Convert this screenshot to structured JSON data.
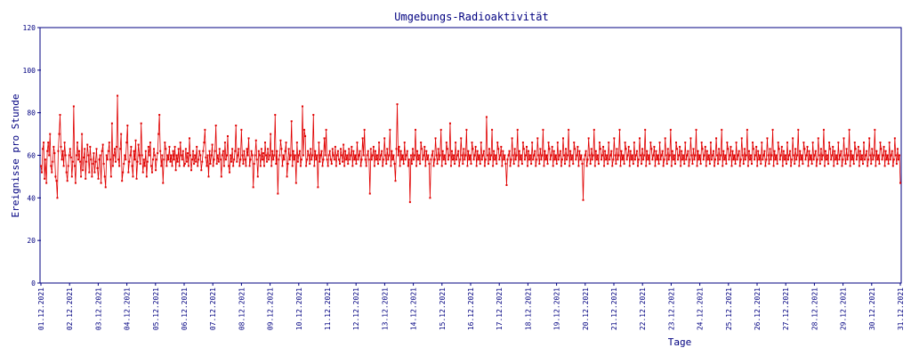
{
  "colors": {
    "frame": "#000080",
    "series": "#e00000",
    "background": "#ffffff"
  },
  "chart_data": {
    "type": "line",
    "title": "Umgebungs-Radioaktivität",
    "xlabel": "Tage",
    "ylabel": "Ereignisse pro Stunde",
    "ylim": [
      0,
      120
    ],
    "yticks": [
      0,
      20,
      40,
      60,
      80,
      100,
      120
    ],
    "xlim": [
      "01.12.2021",
      "31.12.2021"
    ],
    "xticks": [
      "01.12.2021",
      "02.12.2021",
      "03.12.2021",
      "04.12.2021",
      "05.12.2021",
      "06.12.2021",
      "07.12.2021",
      "08.12.2021",
      "09.12.2021",
      "10.12.2021",
      "11.12.2021",
      "12.12.2021",
      "13.12.2021",
      "14.12.2021",
      "15.12.2021",
      "16.12.2021",
      "17.12.2021",
      "18.12.2021",
      "19.12.2021",
      "20.12.2021",
      "21.12.2021",
      "22.12.2021",
      "23.12.2021",
      "24.12.2021",
      "25.12.2021",
      "26.12.2021",
      "27.12.2021",
      "28.12.2021",
      "29.12.2021",
      "30.12.2021",
      "31.12.2021"
    ],
    "grid": false,
    "legend": "none",
    "series": [
      {
        "values": [
          55,
          52,
          63,
          66,
          49,
          58,
          47,
          62,
          66,
          60,
          70,
          55,
          52,
          57,
          64,
          61,
          50,
          48,
          40,
          62,
          70,
          79,
          64,
          58,
          62,
          55,
          66,
          60,
          52,
          48,
          55,
          60,
          63,
          59,
          50,
          57,
          83,
          55,
          47,
          60,
          66,
          58,
          62,
          57,
          50,
          70,
          53,
          59,
          63,
          49,
          57,
          65,
          60,
          52,
          64,
          58,
          50,
          56,
          61,
          52,
          57,
          63,
          54,
          49,
          58,
          60,
          47,
          62,
          65,
          56,
          50,
          45,
          60,
          58,
          62,
          66,
          58,
          50,
          75,
          55,
          60,
          63,
          57,
          64,
          88,
          58,
          55,
          63,
          70,
          48,
          52,
          56,
          60,
          58,
          66,
          74,
          52,
          57,
          60,
          64,
          55,
          50,
          62,
          58,
          67,
          49,
          57,
          65,
          60,
          56,
          75,
          60,
          52,
          58,
          55,
          62,
          50,
          57,
          64,
          60,
          66,
          55,
          52,
          58,
          63,
          60,
          53,
          58,
          61,
          70,
          79,
          62,
          55,
          60,
          47,
          58,
          66,
          63,
          55,
          60,
          58,
          64,
          57,
          60,
          55,
          62,
          58,
          64,
          53,
          60,
          57,
          63,
          55,
          66,
          60,
          58,
          62,
          55,
          56,
          63,
          57,
          61,
          55,
          68,
          60,
          53,
          58,
          62,
          56,
          60,
          57,
          64,
          55,
          58,
          62,
          60,
          53,
          57,
          62,
          66,
          72,
          59,
          55,
          60,
          50,
          62,
          56,
          60,
          65,
          55,
          58,
          62,
          74,
          56,
          60,
          57,
          63,
          58,
          50,
          60,
          62,
          55,
          66,
          58,
          60,
          69,
          55,
          52,
          60,
          57,
          63,
          55,
          58,
          62,
          74,
          57,
          60,
          63,
          55,
          58,
          72,
          60,
          56,
          62,
          58,
          55,
          63,
          60,
          68,
          55,
          58,
          62,
          60,
          45,
          56,
          60,
          67,
          58,
          50,
          62,
          60,
          55,
          63,
          58,
          61,
          55,
          66,
          60,
          57,
          63,
          58,
          60,
          70,
          55,
          62,
          58,
          60,
          79,
          56,
          62,
          42,
          58,
          60,
          67,
          63,
          55,
          60,
          58,
          62,
          66,
          50,
          56,
          63,
          58,
          60,
          76,
          55,
          62,
          58,
          60,
          47,
          66,
          57,
          60,
          62,
          55,
          58,
          83,
          60,
          72,
          69,
          55,
          58,
          62,
          60,
          56,
          63,
          58,
          60,
          79,
          55,
          62,
          58,
          60,
          45,
          66,
          57,
          60,
          62,
          55,
          58,
          68,
          60,
          72,
          58,
          55,
          60,
          62,
          58,
          56,
          63,
          60,
          58,
          64,
          55,
          60,
          62,
          58,
          56,
          63,
          60,
          57,
          65,
          55,
          62,
          58,
          60,
          56,
          63,
          58,
          60,
          64,
          55,
          62,
          58,
          60,
          56,
          66,
          58,
          60,
          62,
          55,
          58,
          68,
          60,
          72,
          58,
          55,
          60,
          62,
          58,
          42,
          63,
          58,
          60,
          64,
          55,
          62,
          58,
          60,
          56,
          66,
          58,
          60,
          62,
          55,
          58,
          68,
          60,
          56,
          63,
          58,
          60,
          72,
          55,
          62,
          58,
          60,
          56,
          48,
          63,
          84,
          60,
          64,
          55,
          62,
          58,
          60,
          56,
          66,
          58,
          60,
          62,
          55,
          58,
          38,
          60,
          56,
          63,
          58,
          60,
          72,
          55,
          62,
          58,
          60,
          56,
          66,
          63,
          58,
          60,
          64,
          55,
          62,
          58,
          60,
          56,
          40,
          58,
          60,
          62,
          55,
          58,
          68,
          60,
          56,
          63,
          58,
          60,
          72,
          55,
          62,
          58,
          60,
          56,
          66,
          63,
          58,
          60,
          75,
          55,
          62,
          58,
          60,
          56,
          66,
          58,
          60,
          62,
          55,
          58,
          68,
          60,
          56,
          63,
          58,
          60,
          72,
          55,
          62,
          58,
          60,
          56,
          66,
          63,
          58,
          60,
          64,
          55,
          62,
          58,
          60,
          56,
          66,
          58,
          60,
          62,
          55,
          58,
          78,
          60,
          56,
          63,
          58,
          60,
          72,
          55,
          62,
          58,
          60,
          56,
          66,
          63,
          58,
          60,
          64,
          55,
          62,
          58,
          60,
          56,
          46,
          58,
          60,
          62,
          55,
          58,
          68,
          60,
          56,
          63,
          58,
          60,
          72,
          55,
          62,
          58,
          60,
          56,
          66,
          63,
          58,
          60,
          64,
          55,
          62,
          58,
          60,
          56,
          66,
          58,
          60,
          62,
          55,
          58,
          68,
          60,
          56,
          63,
          58,
          60,
          72,
          55,
          62,
          58,
          60,
          56,
          66,
          63,
          58,
          60,
          64,
          55,
          62,
          58,
          60,
          56,
          66,
          58,
          60,
          62,
          55,
          58,
          68,
          60,
          56,
          63,
          58,
          60,
          72,
          55,
          62,
          58,
          60,
          56,
          66,
          63,
          58,
          60,
          64,
          55,
          62,
          58,
          60,
          56,
          39,
          58,
          60,
          62,
          55,
          58,
          68,
          60,
          56,
          63,
          58,
          60,
          72,
          55,
          62,
          58,
          60,
          56,
          66,
          63,
          58,
          60,
          64,
          55,
          62,
          58,
          60,
          56,
          66,
          58,
          60,
          62,
          55,
          58,
          68,
          60,
          56,
          63,
          58,
          60,
          72,
          55,
          62,
          58,
          60,
          56,
          66,
          63,
          58,
          60,
          64,
          55,
          62,
          58,
          60,
          56,
          66,
          58,
          60,
          62,
          55,
          58,
          68,
          60,
          56,
          63,
          58,
          60,
          72,
          55,
          62,
          58,
          60,
          56,
          66,
          63,
          58,
          60,
          64,
          55,
          62,
          58,
          60,
          56,
          66,
          58,
          60,
          62,
          55,
          58,
          68,
          60,
          56,
          63,
          58,
          60,
          72,
          55,
          62,
          58,
          60,
          56,
          66,
          63,
          58,
          60,
          64,
          55,
          62,
          58,
          60,
          56,
          66,
          58,
          60,
          62,
          55,
          58,
          68,
          60,
          56,
          63,
          58,
          60,
          72,
          55,
          62,
          58,
          60,
          56,
          66,
          63,
          58,
          60,
          64,
          55,
          62,
          58,
          60,
          56,
          66,
          58,
          60,
          62,
          55,
          58,
          68,
          60,
          56,
          63,
          58,
          60,
          72,
          55,
          62,
          58,
          60,
          56,
          66,
          63,
          58,
          60,
          64,
          55,
          62,
          58,
          60,
          56,
          66,
          58,
          60,
          62,
          55,
          58,
          68,
          60,
          56,
          63,
          58,
          60,
          72,
          55,
          62,
          58,
          60,
          56,
          66,
          63,
          58,
          60,
          64,
          55,
          62,
          58,
          60,
          56,
          66,
          58,
          60,
          62,
          55,
          58,
          68,
          60,
          56,
          63,
          58,
          60,
          72,
          55,
          62,
          58,
          60,
          56,
          66,
          63,
          58,
          60,
          64,
          55,
          62,
          58,
          60,
          56,
          66,
          58,
          60,
          62,
          55,
          58,
          68,
          60,
          56,
          63,
          58,
          60,
          72,
          55,
          62,
          58,
          60,
          56,
          66,
          63,
          58,
          60,
          64,
          55,
          62,
          58,
          60,
          56,
          66,
          58,
          60,
          62,
          55,
          58,
          68,
          60,
          56,
          63,
          58,
          60,
          72,
          55,
          62,
          58,
          60,
          56,
          66,
          63,
          58,
          60,
          64,
          55,
          62,
          58,
          60,
          56,
          66,
          58,
          60,
          62,
          55,
          58,
          68,
          60,
          56,
          63,
          58,
          60,
          72,
          55,
          62,
          58,
          60,
          56,
          66,
          63,
          58,
          60,
          64,
          55,
          62,
          58,
          60,
          56,
          66,
          58,
          60,
          62,
          55,
          58,
          68,
          60,
          56,
          63,
          58,
          60,
          72,
          55,
          62,
          58,
          60,
          56,
          66,
          63,
          58,
          60,
          64,
          55,
          62,
          58,
          60,
          56,
          66,
          58,
          60,
          62,
          55,
          58,
          68,
          60,
          56,
          63,
          58,
          60,
          47
        ]
      }
    ]
  }
}
